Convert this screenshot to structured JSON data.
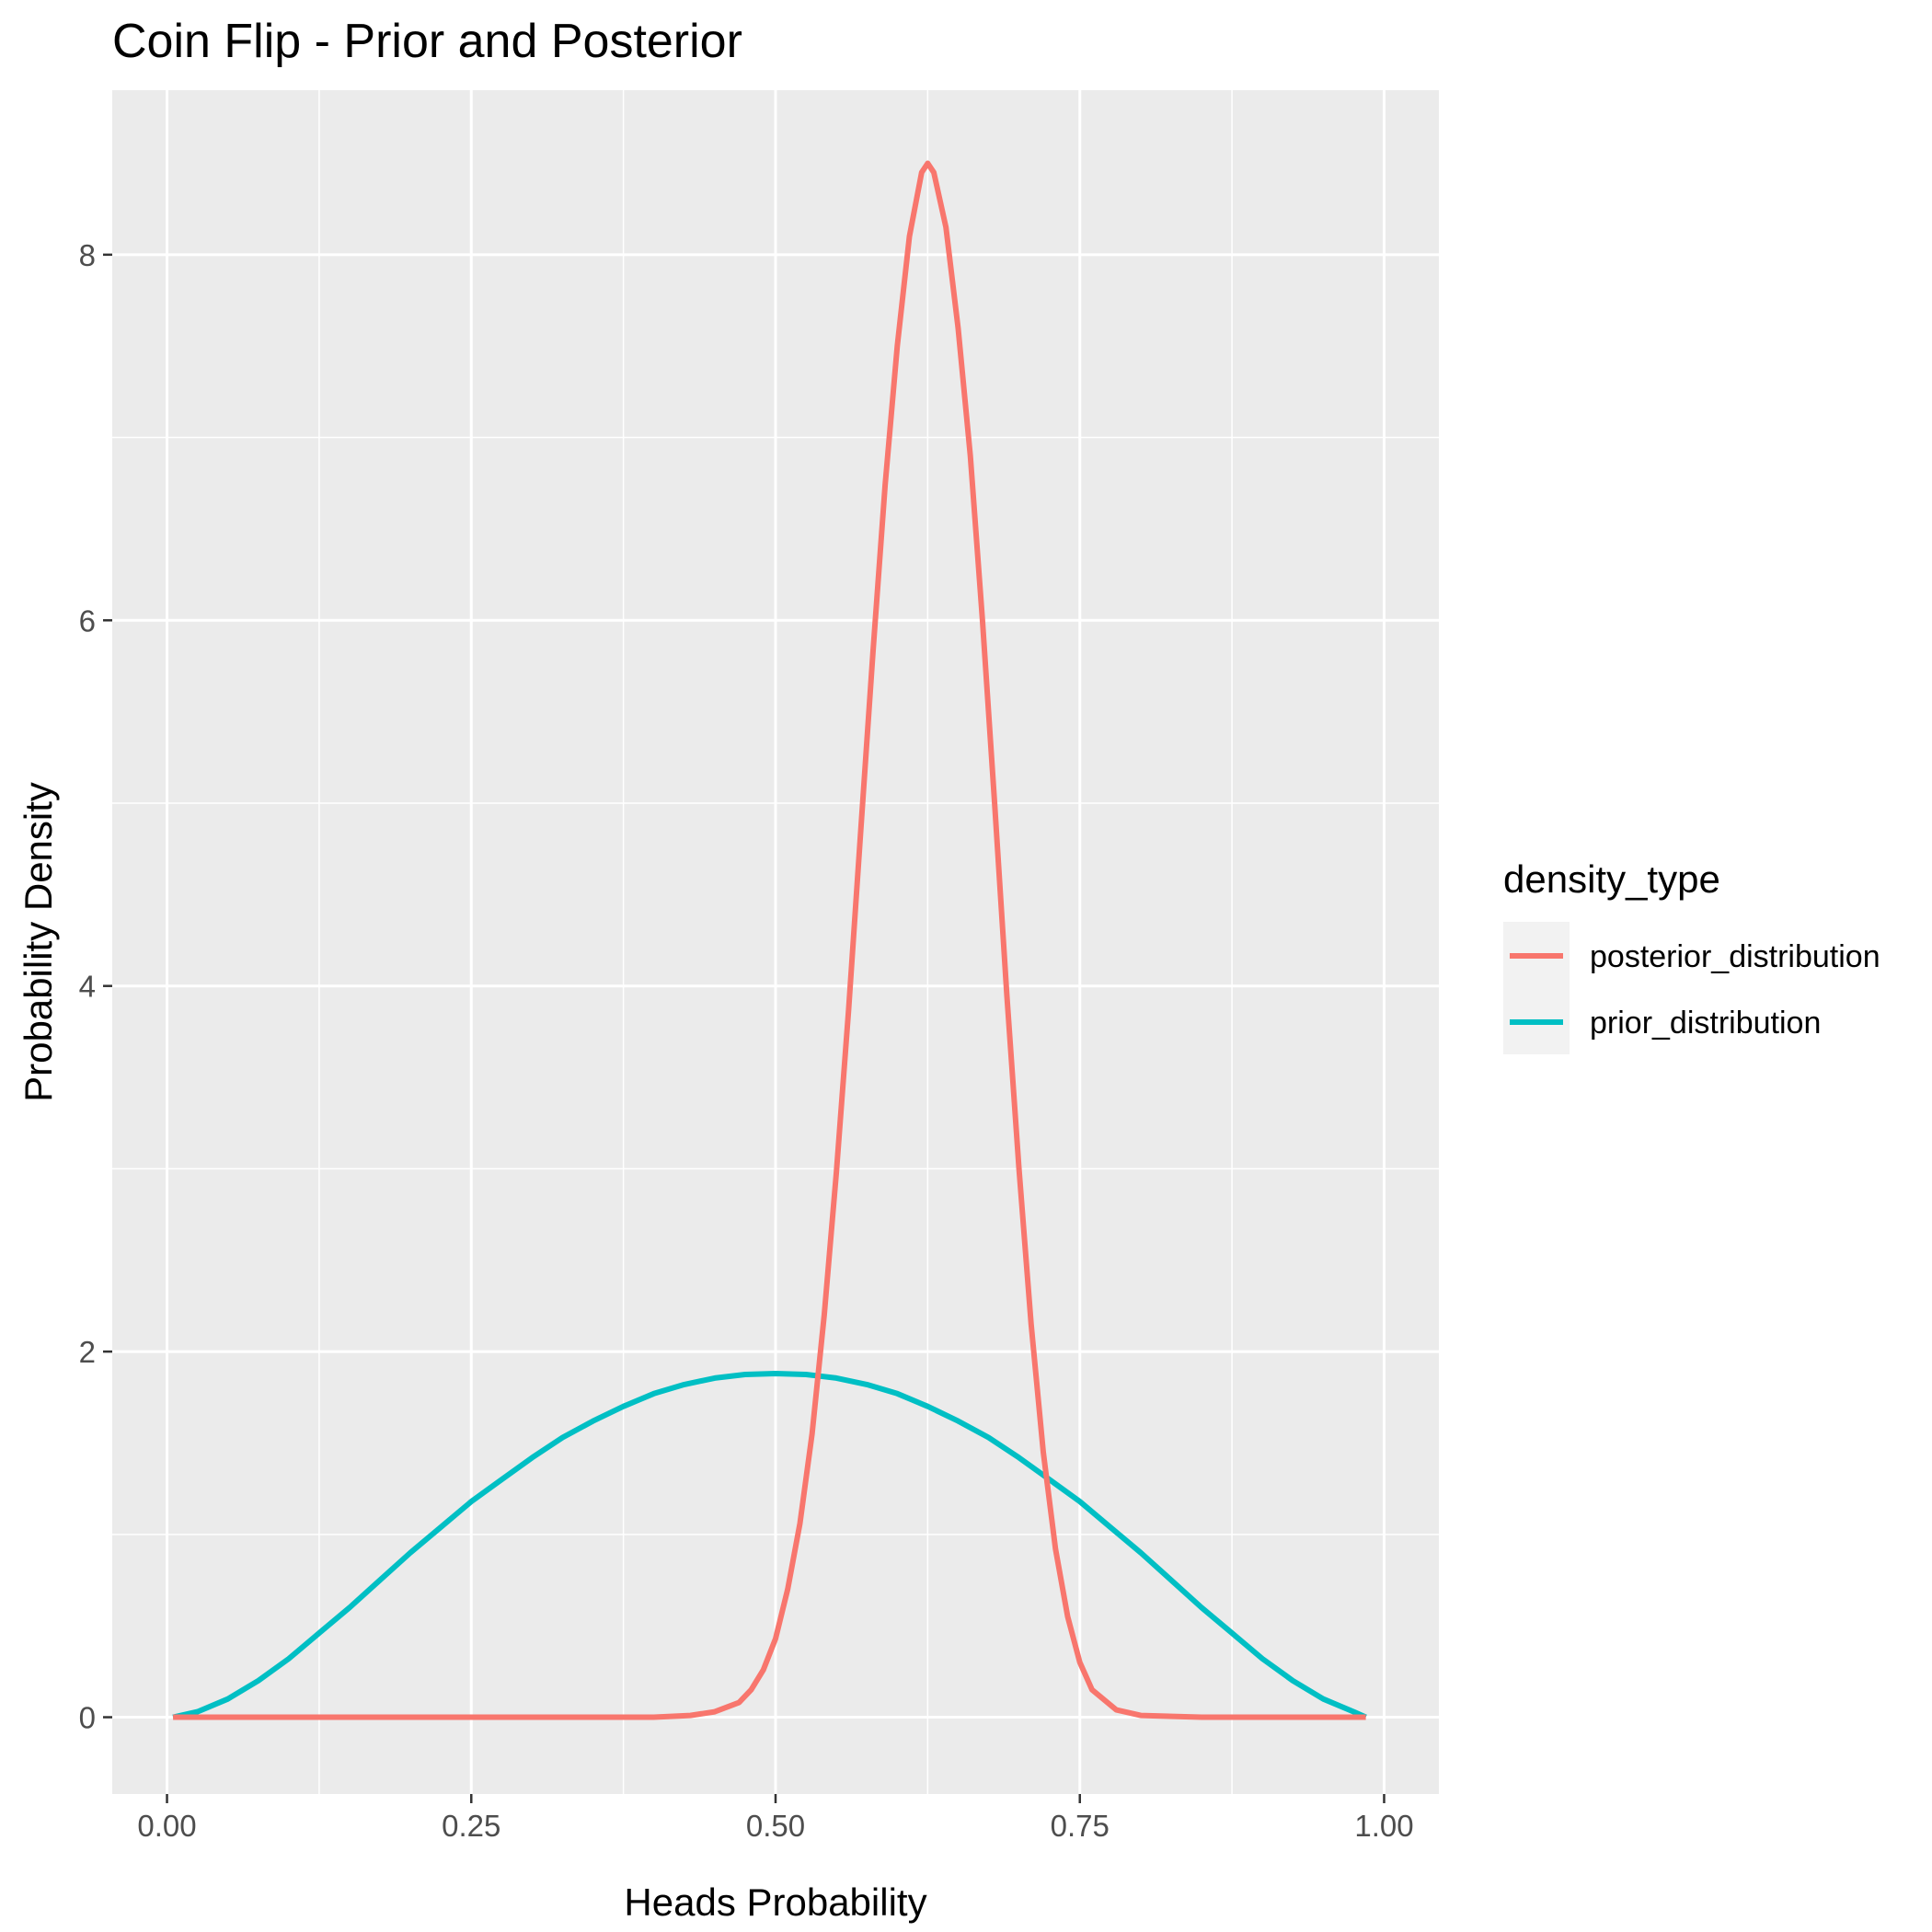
{
  "chart_data": {
    "type": "line",
    "title": "Coin Flip - Prior and Posterior",
    "xlabel": "Heads Probability",
    "ylabel": "Probability Density",
    "xlim": [
      -0.045,
      1.045
    ],
    "ylim": [
      -0.42,
      8.9
    ],
    "x_ticks": [
      0,
      0.25,
      0.5,
      0.75,
      1
    ],
    "x_tick_labels": [
      "0.00",
      "0.25",
      "0.50",
      "0.75",
      "1.00"
    ],
    "y_ticks": [
      0,
      2,
      4,
      6,
      8
    ],
    "y_tick_labels": [
      "0",
      "2",
      "4",
      "6",
      "8"
    ],
    "x_minor": [
      0.125,
      0.375,
      0.625,
      0.875
    ],
    "y_minor": [
      1,
      3,
      5,
      7
    ],
    "legend": {
      "title": "density_type",
      "position": "right"
    },
    "series": [
      {
        "name": "posterior_distribution",
        "color": "#F8766D",
        "x": [
          0.005,
          0.1,
          0.2,
          0.3,
          0.4,
          0.43,
          0.45,
          0.47,
          0.48,
          0.49,
          0.5,
          0.51,
          0.52,
          0.53,
          0.54,
          0.55,
          0.56,
          0.57,
          0.58,
          0.59,
          0.6,
          0.61,
          0.62,
          0.625,
          0.63,
          0.64,
          0.65,
          0.66,
          0.67,
          0.68,
          0.69,
          0.7,
          0.71,
          0.72,
          0.73,
          0.74,
          0.75,
          0.76,
          0.78,
          0.8,
          0.85,
          0.9,
          0.985
        ],
        "y": [
          0,
          0,
          0,
          0,
          0,
          0.01,
          0.03,
          0.08,
          0.15,
          0.26,
          0.43,
          0.7,
          1.06,
          1.55,
          2.2,
          2.98,
          3.87,
          4.85,
          5.82,
          6.74,
          7.5,
          8.1,
          8.45,
          8.5,
          8.45,
          8.15,
          7.6,
          6.9,
          6.0,
          5.0,
          3.95,
          3.0,
          2.15,
          1.45,
          0.92,
          0.55,
          0.3,
          0.15,
          0.04,
          0.01,
          0,
          0,
          0
        ]
      },
      {
        "name": "prior_distribution",
        "color": "#00BFC4",
        "x": [
          0.005,
          0.025,
          0.05,
          0.075,
          0.1,
          0.125,
          0.15,
          0.175,
          0.2,
          0.225,
          0.25,
          0.275,
          0.3,
          0.325,
          0.35,
          0.375,
          0.4,
          0.425,
          0.45,
          0.475,
          0.5,
          0.525,
          0.55,
          0.575,
          0.6,
          0.625,
          0.65,
          0.675,
          0.7,
          0.725,
          0.75,
          0.775,
          0.8,
          0.825,
          0.85,
          0.875,
          0.9,
          0.925,
          0.95,
          0.975,
          0.985
        ],
        "y": [
          0.0,
          0.03,
          0.1,
          0.2,
          0.32,
          0.46,
          0.6,
          0.75,
          0.9,
          1.04,
          1.18,
          1.3,
          1.42,
          1.53,
          1.62,
          1.7,
          1.77,
          1.82,
          1.855,
          1.875,
          1.88,
          1.875,
          1.855,
          1.82,
          1.77,
          1.7,
          1.62,
          1.53,
          1.42,
          1.3,
          1.18,
          1.04,
          0.9,
          0.75,
          0.6,
          0.46,
          0.32,
          0.2,
          0.1,
          0.03,
          0.0
        ]
      }
    ]
  }
}
